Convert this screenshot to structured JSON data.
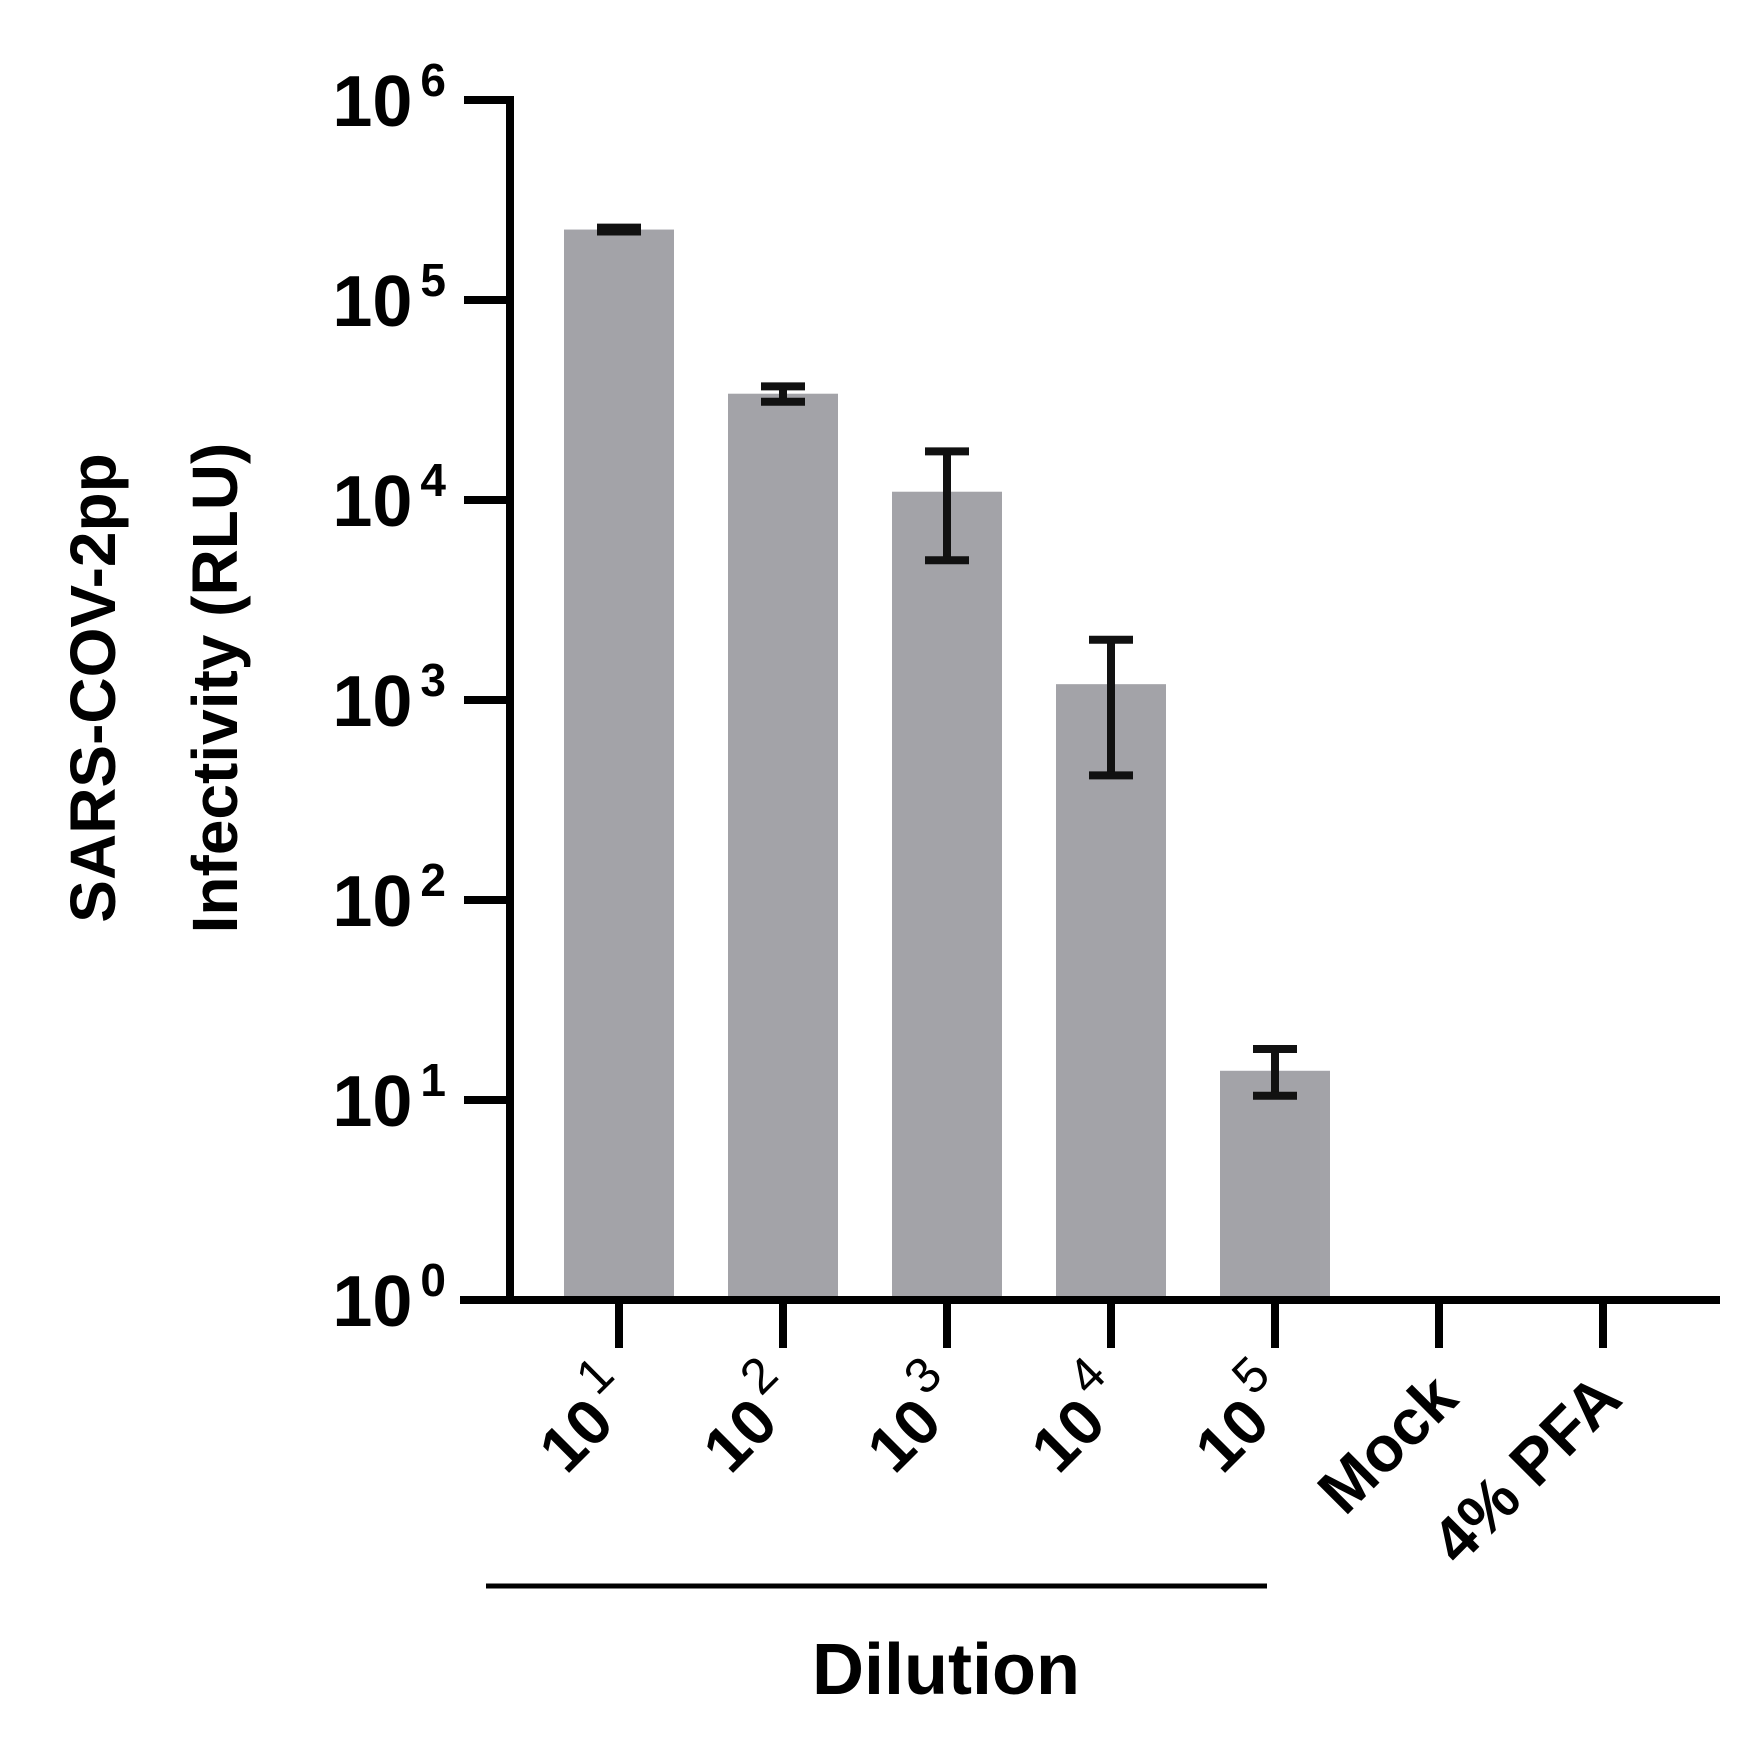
{
  "chart_data": {
    "type": "bar",
    "categories": [
      {
        "base": "10",
        "exp": "1"
      },
      {
        "base": "10",
        "exp": "2"
      },
      {
        "base": "10",
        "exp": "3"
      },
      {
        "base": "10",
        "exp": "4"
      },
      {
        "base": "10",
        "exp": "5"
      },
      {
        "base": "Mock",
        "exp": ""
      },
      {
        "base": "4% PFA",
        "exp": ""
      }
    ],
    "values": [
      225000,
      34000,
      11000,
      1200,
      14,
      null,
      null
    ],
    "error_low": [
      220000,
      31000,
      5000,
      420,
      10.5,
      null,
      null
    ],
    "error_high": [
      230000,
      37000,
      17500,
      2000,
      18,
      null,
      null
    ],
    "ylabel_lines": [
      "SARS-COV-2pp",
      "Infectivity (RLU)"
    ],
    "yscale": "log",
    "ylim": [
      1,
      1000000
    ],
    "yticks": [
      {
        "base": "10",
        "exp": "0"
      },
      {
        "base": "10",
        "exp": "1"
      },
      {
        "base": "10",
        "exp": "2"
      },
      {
        "base": "10",
        "exp": "3"
      },
      {
        "base": "10",
        "exp": "4"
      },
      {
        "base": "10",
        "exp": "5"
      },
      {
        "base": "10",
        "exp": "6"
      }
    ],
    "group_label": {
      "text": "Dilution",
      "categories": [
        0,
        4
      ]
    },
    "bar_color": "#a3a3a8",
    "error_color": "#111111",
    "grid": false,
    "legend": "none"
  }
}
